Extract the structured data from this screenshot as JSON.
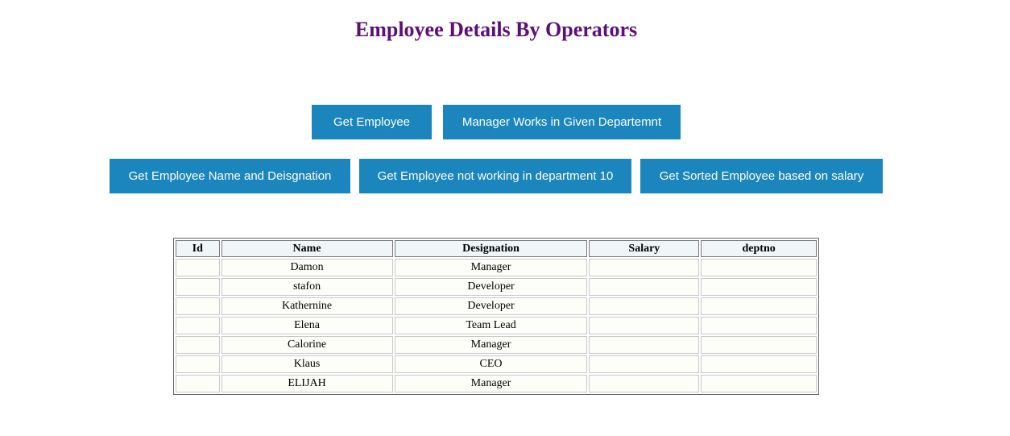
{
  "page": {
    "title": "Employee Details By Operators"
  },
  "buttons": {
    "get_employee": "Get Employee",
    "manager_dept": "Manager Works in Given Departemnt",
    "name_designation": "Get Employee Name and Deisgnation",
    "not_dept10": "Get Employee not working in department 10",
    "sorted_salary": "Get Sorted Employee based on salary"
  },
  "table": {
    "headers": [
      "Id",
      "Name",
      "Designation",
      "Salary",
      "deptno"
    ],
    "rows": [
      {
        "id": "",
        "name": "Damon",
        "designation": "Manager",
        "salary": "",
        "deptno": ""
      },
      {
        "id": "",
        "name": "stafon",
        "designation": "Developer",
        "salary": "",
        "deptno": ""
      },
      {
        "id": "",
        "name": "Kathernine",
        "designation": "Developer",
        "salary": "",
        "deptno": ""
      },
      {
        "id": "",
        "name": "Elena",
        "designation": "Team Lead",
        "salary": "",
        "deptno": ""
      },
      {
        "id": "",
        "name": "Calorine",
        "designation": "Manager",
        "salary": "",
        "deptno": ""
      },
      {
        "id": "",
        "name": "Klaus",
        "designation": "CEO",
        "salary": "",
        "deptno": ""
      },
      {
        "id": "",
        "name": "ELIJAH",
        "designation": "Manager",
        "salary": "",
        "deptno": ""
      }
    ]
  },
  "colors": {
    "title": "#5c0f75",
    "button_bg": "#1a86bd",
    "button_text": "#ffffff"
  }
}
